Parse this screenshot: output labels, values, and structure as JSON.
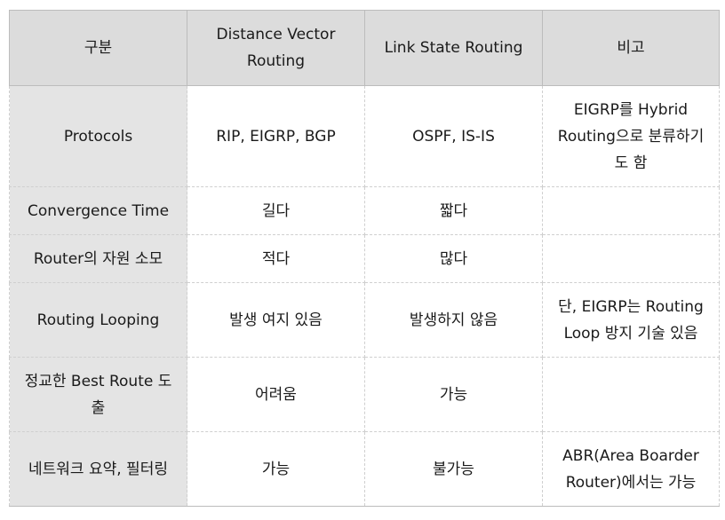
{
  "table": {
    "headers": [
      "구분",
      "Distance Vector Routing",
      "Link State Routing",
      "비고"
    ],
    "rows": [
      {
        "label": "Protocols",
        "dv": "RIP, EIGRP, BGP",
        "ls": "OSPF, IS-IS",
        "note": "EIGRP를 Hybrid Routing으로 분류하기도 함"
      },
      {
        "label": "Convergence Time",
        "dv": "길다",
        "ls": "짧다",
        "note": ""
      },
      {
        "label": "Router의 자원 소모",
        "dv": "적다",
        "ls": "많다",
        "note": ""
      },
      {
        "label": "Routing Looping",
        "dv": "발생 여지 있음",
        "ls": "발생하지 않음",
        "note": "단, EIGRP는 Routing Loop 방지 기술 있음"
      },
      {
        "label": "정교한 Best Route 도출",
        "dv": "어려움",
        "ls": "가능",
        "note": ""
      },
      {
        "label": "네트워크 요약, 필터링",
        "dv": "가능",
        "ls": "불가능",
        "note": "ABR(Area Boarder Router)에서는 가능"
      }
    ]
  }
}
